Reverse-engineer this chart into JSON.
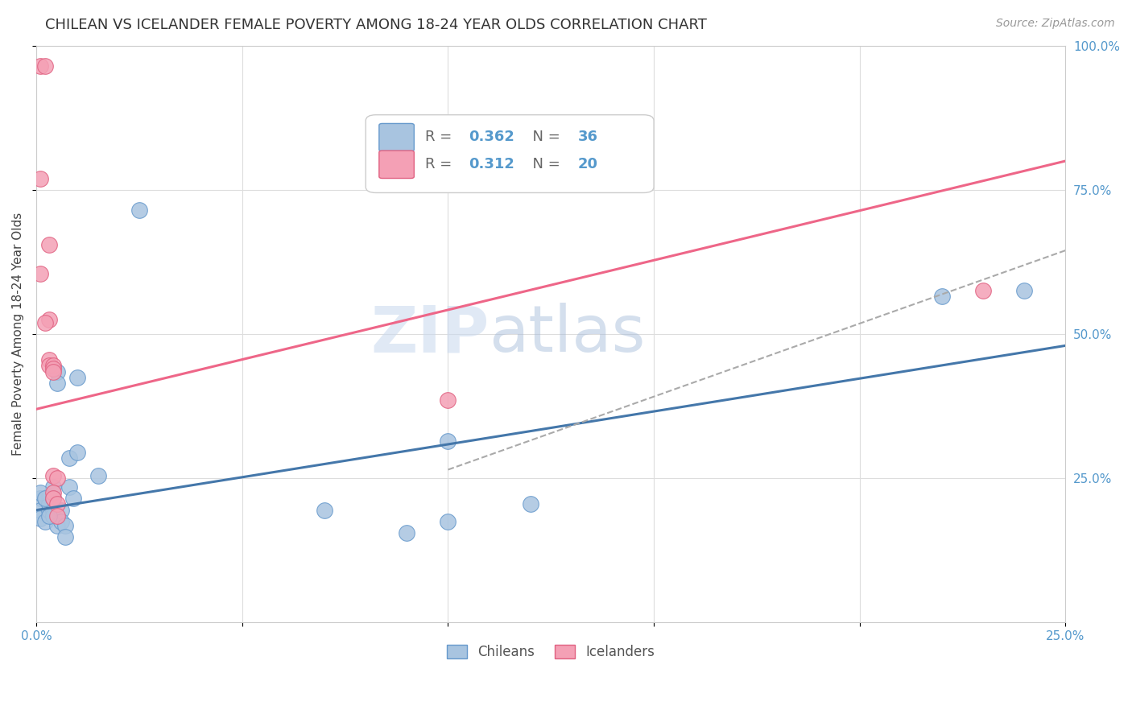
{
  "title": "CHILEAN VS ICELANDER FEMALE POVERTY AMONG 18-24 YEAR OLDS CORRELATION CHART",
  "source": "Source: ZipAtlas.com",
  "ylabel_label": "Female Poverty Among 18-24 Year Olds",
  "xlim": [
    0.0,
    0.25
  ],
  "ylim": [
    0.0,
    1.0
  ],
  "xticks": [
    0.0,
    0.05,
    0.1,
    0.15,
    0.2,
    0.25
  ],
  "yticks": [
    0.25,
    0.5,
    0.75,
    1.0
  ],
  "xticklabels": [
    "0.0%",
    "",
    "",
    "",
    "",
    "25.0%"
  ],
  "yticklabels_right": [
    "25.0%",
    "50.0%",
    "75.0%",
    "100.0%"
  ],
  "chilean_color": "#a8c4e0",
  "icelander_color": "#f4a0b5",
  "chilean_edge_color": "#6699cc",
  "icelander_edge_color": "#e06080",
  "chilean_line_color": "#4477aa",
  "icelander_line_color": "#ee6688",
  "dashed_line_color": "#aaaaaa",
  "watermark_zip": "ZIP",
  "watermark_atlas": "atlas",
  "legend_R_chilean": "0.362",
  "legend_N_chilean": "36",
  "legend_R_icelander": "0.312",
  "legend_N_icelander": "20",
  "chilean_points": [
    [
      0.001,
      0.215
    ],
    [
      0.001,
      0.195
    ],
    [
      0.001,
      0.18
    ],
    [
      0.002,
      0.215
    ],
    [
      0.002,
      0.175
    ],
    [
      0.003,
      0.22
    ],
    [
      0.003,
      0.195
    ],
    [
      0.003,
      0.205
    ],
    [
      0.004,
      0.235
    ],
    [
      0.004,
      0.195
    ],
    [
      0.004,
      0.185
    ],
    [
      0.005,
      0.435
    ],
    [
      0.005,
      0.415
    ],
    [
      0.005,
      0.168
    ],
    [
      0.006,
      0.195
    ],
    [
      0.006,
      0.175
    ],
    [
      0.007,
      0.168
    ],
    [
      0.007,
      0.148
    ],
    [
      0.008,
      0.285
    ],
    [
      0.008,
      0.235
    ],
    [
      0.009,
      0.215
    ],
    [
      0.01,
      0.425
    ],
    [
      0.01,
      0.295
    ],
    [
      0.015,
      0.255
    ],
    [
      0.025,
      0.715
    ],
    [
      0.07,
      0.195
    ],
    [
      0.09,
      0.155
    ],
    [
      0.1,
      0.315
    ],
    [
      0.1,
      0.175
    ],
    [
      0.12,
      0.205
    ],
    [
      0.22,
      0.565
    ],
    [
      0.24,
      0.575
    ],
    [
      0.001,
      0.225
    ],
    [
      0.002,
      0.215
    ],
    [
      0.003,
      0.185
    ],
    [
      0.004,
      0.215
    ]
  ],
  "icelander_points": [
    [
      0.001,
      0.965
    ],
    [
      0.002,
      0.965
    ],
    [
      0.001,
      0.77
    ],
    [
      0.003,
      0.655
    ],
    [
      0.001,
      0.605
    ],
    [
      0.003,
      0.525
    ],
    [
      0.002,
      0.52
    ],
    [
      0.003,
      0.455
    ],
    [
      0.003,
      0.445
    ],
    [
      0.004,
      0.445
    ],
    [
      0.004,
      0.44
    ],
    [
      0.004,
      0.435
    ],
    [
      0.004,
      0.255
    ],
    [
      0.005,
      0.25
    ],
    [
      0.004,
      0.225
    ],
    [
      0.004,
      0.215
    ],
    [
      0.005,
      0.205
    ],
    [
      0.005,
      0.185
    ],
    [
      0.1,
      0.385
    ],
    [
      0.23,
      0.575
    ]
  ],
  "background_color": "#ffffff",
  "grid_color": "#dddddd",
  "tick_color": "#5599cc",
  "title_fontsize": 13,
  "label_fontsize": 11,
  "tick_fontsize": 11,
  "source_fontsize": 10,
  "marker_size": 200
}
